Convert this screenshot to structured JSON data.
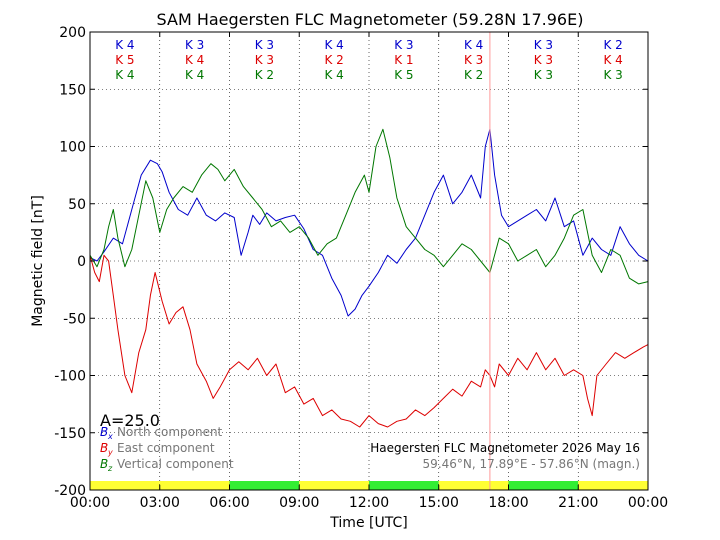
{
  "chart_data": {
    "type": "line",
    "title": "SAM Haegersten FLC Magnetometer (59.28N 17.96E)",
    "xlabel": "Time [UTC]",
    "ylabel": "Magnetic field [nT]",
    "xlim": [
      0,
      24
    ],
    "ylim": [
      -200,
      200
    ],
    "x_tick_labels": [
      "00:00",
      "03:00",
      "06:00",
      "09:00",
      "12:00",
      "15:00",
      "18:00",
      "21:00",
      "00:00"
    ],
    "y_ticks": [
      -200,
      -150,
      -100,
      -50,
      0,
      50,
      100,
      150,
      200
    ],
    "grid": true,
    "k_index_rows": [
      {
        "prefix": "K",
        "color": "#0000cc",
        "values": [
          4,
          3,
          3,
          4,
          3,
          4,
          3,
          2
        ]
      },
      {
        "prefix": "K",
        "color": "#dd0000",
        "values": [
          5,
          4,
          3,
          2,
          1,
          3,
          3,
          4
        ]
      },
      {
        "prefix": "K",
        "color": "#007700",
        "values": [
          4,
          4,
          2,
          4,
          5,
          2,
          3,
          3
        ]
      }
    ],
    "activity_label": "A=25.0",
    "legend": [
      {
        "symbol": "B",
        "sub": "x",
        "text": "North component",
        "color": "#0000cc"
      },
      {
        "symbol": "B",
        "sub": "y",
        "text": "East component",
        "color": "#dd0000"
      },
      {
        "symbol": "B",
        "sub": "z",
        "text": "Vertical component",
        "color": "#007700"
      }
    ],
    "station_caption": "Haegersten FLC Magnetometer 2026 May 16",
    "coords_caption": "59.46°N, 17.89°E - 57.86°N (magn.)",
    "marker_time": 17.2,
    "band_colors": [
      "#ffff33",
      "#ffff33",
      "#33ee33",
      "#ffff33",
      "#33ee33",
      "#ffff33",
      "#33ee33",
      "#ffff33"
    ],
    "series": [
      {
        "name": "Bx",
        "color": "#0000cc",
        "x": [
          0,
          0.3,
          0.6,
          1.0,
          1.4,
          1.8,
          2.2,
          2.6,
          2.9,
          3.1,
          3.4,
          3.8,
          4.2,
          4.6,
          5.0,
          5.4,
          5.8,
          6.2,
          6.5,
          6.8,
          7.0,
          7.3,
          7.6,
          8.0,
          8.4,
          8.8,
          9.2,
          9.6,
          10.0,
          10.4,
          10.8,
          11.1,
          11.4,
          11.7,
          12.0,
          12.4,
          12.8,
          13.2,
          13.6,
          14.0,
          14.4,
          14.8,
          15.2,
          15.6,
          16.0,
          16.4,
          16.8,
          17.0,
          17.2,
          17.4,
          17.7,
          18.0,
          18.4,
          18.8,
          19.2,
          19.6,
          20.0,
          20.4,
          20.8,
          21.2,
          21.6,
          22.0,
          22.4,
          22.8,
          23.2,
          23.6,
          24.0
        ],
        "y": [
          3,
          0,
          8,
          20,
          15,
          45,
          75,
          88,
          85,
          78,
          60,
          45,
          40,
          55,
          40,
          35,
          42,
          38,
          5,
          25,
          40,
          32,
          42,
          35,
          38,
          40,
          28,
          10,
          5,
          -15,
          -30,
          -48,
          -42,
          -30,
          -22,
          -10,
          5,
          -2,
          10,
          20,
          40,
          60,
          75,
          50,
          60,
          75,
          55,
          100,
          115,
          75,
          40,
          30,
          35,
          40,
          45,
          35,
          55,
          30,
          35,
          5,
          20,
          10,
          5,
          30,
          15,
          5,
          0
        ]
      },
      {
        "name": "By",
        "color": "#dd0000",
        "x": [
          0,
          0.2,
          0.4,
          0.6,
          0.8,
          1.0,
          1.2,
          1.5,
          1.8,
          2.1,
          2.4,
          2.6,
          2.8,
          3.1,
          3.4,
          3.7,
          4.0,
          4.3,
          4.6,
          5.0,
          5.3,
          5.6,
          6.0,
          6.4,
          6.8,
          7.2,
          7.6,
          8.0,
          8.4,
          8.8,
          9.2,
          9.6,
          10.0,
          10.4,
          10.8,
          11.2,
          11.6,
          12.0,
          12.4,
          12.8,
          13.2,
          13.6,
          14.0,
          14.4,
          14.8,
          15.2,
          15.6,
          16.0,
          16.4,
          16.8,
          17.0,
          17.2,
          17.4,
          17.6,
          18.0,
          18.4,
          18.8,
          19.2,
          19.6,
          20.0,
          20.4,
          20.8,
          21.2,
          21.4,
          21.6,
          21.8,
          22.2,
          22.6,
          23.0,
          23.4,
          23.8,
          24.0
        ],
        "y": [
          5,
          -10,
          -18,
          5,
          0,
          -30,
          -60,
          -100,
          -115,
          -80,
          -60,
          -30,
          -10,
          -35,
          -55,
          -45,
          -40,
          -60,
          -90,
          -105,
          -120,
          -110,
          -95,
          -88,
          -95,
          -85,
          -100,
          -90,
          -115,
          -110,
          -125,
          -120,
          -135,
          -130,
          -138,
          -140,
          -145,
          -135,
          -142,
          -145,
          -140,
          -138,
          -130,
          -135,
          -128,
          -120,
          -112,
          -118,
          -105,
          -110,
          -95,
          -100,
          -110,
          -90,
          -100,
          -85,
          -95,
          -80,
          -95,
          -85,
          -100,
          -95,
          -100,
          -120,
          -135,
          -100,
          -90,
          -80,
          -85,
          -80,
          -75,
          -73
        ]
      },
      {
        "name": "Bz",
        "color": "#007700",
        "x": [
          0,
          0.3,
          0.6,
          0.8,
          1.0,
          1.2,
          1.5,
          1.8,
          2.1,
          2.4,
          2.7,
          3.0,
          3.3,
          3.6,
          4.0,
          4.4,
          4.8,
          5.2,
          5.5,
          5.8,
          6.2,
          6.6,
          7.0,
          7.4,
          7.8,
          8.2,
          8.6,
          9.0,
          9.4,
          9.8,
          10.2,
          10.6,
          11.0,
          11.4,
          11.8,
          12.0,
          12.3,
          12.6,
          12.9,
          13.2,
          13.6,
          14.0,
          14.4,
          14.8,
          15.2,
          15.6,
          16.0,
          16.4,
          16.8,
          17.2,
          17.6,
          18.0,
          18.4,
          18.8,
          19.2,
          19.6,
          20.0,
          20.4,
          20.8,
          21.2,
          21.6,
          22.0,
          22.4,
          22.8,
          23.2,
          23.6,
          24.0
        ],
        "y": [
          5,
          -5,
          10,
          30,
          45,
          20,
          -5,
          10,
          40,
          70,
          55,
          25,
          45,
          55,
          65,
          60,
          75,
          85,
          80,
          70,
          80,
          65,
          55,
          45,
          30,
          35,
          25,
          30,
          20,
          5,
          15,
          20,
          40,
          60,
          75,
          60,
          100,
          115,
          90,
          55,
          30,
          20,
          10,
          5,
          -5,
          5,
          15,
          10,
          0,
          -10,
          20,
          15,
          0,
          5,
          10,
          -5,
          5,
          20,
          40,
          45,
          5,
          -10,
          10,
          5,
          -15,
          -20,
          -18
        ]
      }
    ]
  }
}
